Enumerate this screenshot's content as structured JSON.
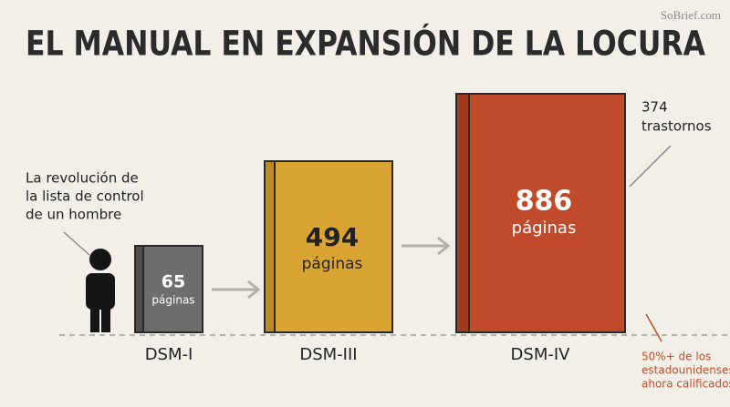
{
  "header": {
    "title": "EL MANUAL EN EXPANSIÓN DE LA LOCURA",
    "watermark": "SoBrief.com"
  },
  "books": [
    {
      "pages": 65,
      "unit": "páginas",
      "label": "DSM-I"
    },
    {
      "pages": 494,
      "unit": "páginas",
      "label": "DSM-III"
    },
    {
      "pages": 886,
      "unit": "páginas",
      "label": "DSM-IV"
    }
  ],
  "annotations": {
    "left": [
      "La revolución de",
      "la lista de control",
      "de un hombre"
    ],
    "top_right": [
      "374",
      "trastornos"
    ],
    "bottom_right": [
      "50%+ de los",
      "estadounidenses",
      "ahora calificados"
    ]
  }
}
